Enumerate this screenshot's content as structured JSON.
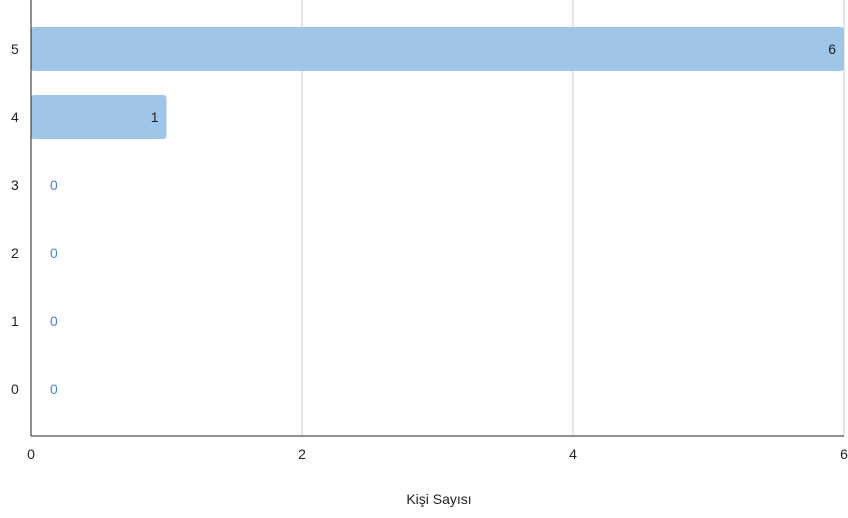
{
  "chart_data": {
    "type": "bar",
    "orientation": "horizontal",
    "categories": [
      "5",
      "4",
      "3",
      "2",
      "1",
      "0"
    ],
    "values": [
      6,
      1,
      0,
      0,
      0,
      0
    ],
    "xlabel": "Kişi Sayısı",
    "ylabel": "",
    "xlim": [
      0,
      6
    ],
    "xticks": [
      "0",
      "2",
      "4",
      "6"
    ],
    "data_labels": [
      "6",
      "1",
      "0",
      "0",
      "0",
      "0"
    ],
    "grid": "vertical",
    "legend": "none",
    "colors": {
      "bar": "#9fc5e8",
      "label_inside": "#222222",
      "label_zero": "#4a86c8",
      "grid": "#cccccc",
      "axis": "#222222"
    }
  }
}
